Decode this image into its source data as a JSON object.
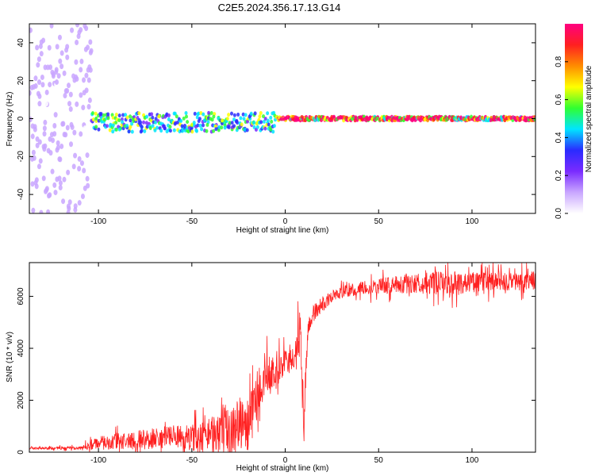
{
  "figure_title": "C2E5.2024.356.17.13.G14",
  "chart_data": [
    {
      "type": "heatmap",
      "xlabel": "Height of straight line (km)",
      "ylabel": "Frequency (Hz)",
      "xlim": [
        -137,
        134
      ],
      "ylim": [
        -50,
        50
      ],
      "xticks": [
        -100,
        -50,
        0,
        50,
        100
      ],
      "yticks": [
        -40,
        -20,
        0,
        20,
        40
      ],
      "colorbar": {
        "label": "Normalized spectral amplitude",
        "range": [
          0,
          1
        ],
        "ticks": [
          0.0,
          0.2,
          0.4,
          0.6,
          0.8
        ],
        "colormap": [
          "#ffffff",
          "#c9a6ff",
          "#7a2bff",
          "#2a2bff",
          "#00e5ff",
          "#30ff30",
          "#ffff00",
          "#ff8c00",
          "#ff2020",
          "#ff0080"
        ]
      },
      "description_series": [
        {
          "x_from": -137,
          "x_to": -104,
          "freq_center": 0,
          "freq_spread": 50,
          "amplitude": 0.1
        },
        {
          "x_from": -104,
          "x_to": -5,
          "freq_center": -2,
          "freq_spread": 5,
          "amplitude": 0.45
        },
        {
          "x_from": -5,
          "x_to": 134,
          "freq_center": 0,
          "freq_spread": 1,
          "amplitude": 0.9
        }
      ]
    },
    {
      "type": "line",
      "xlabel": "Height of straight line (km)",
      "ylabel": "SNR (10 * v/v)",
      "xlim": [
        -137,
        134
      ],
      "ylim": [
        0,
        7300
      ],
      "xticks": [
        -100,
        -50,
        0,
        50,
        100
      ],
      "yticks": [
        0,
        2000,
        4000,
        6000
      ],
      "color": "#ff2020",
      "envelope": {
        "x": [
          -137,
          -110,
          -100,
          -90,
          -80,
          -70,
          -60,
          -50,
          -40,
          -35,
          -30,
          -25,
          -20,
          -15,
          -10,
          -5,
          0,
          5,
          8,
          10,
          12,
          15,
          20,
          25,
          30,
          40,
          50,
          60,
          70,
          80,
          90,
          100,
          110,
          120,
          134
        ],
        "base": [
          150,
          160,
          350,
          400,
          450,
          550,
          600,
          550,
          700,
          900,
          700,
          1200,
          1000,
          2200,
          3000,
          3000,
          3500,
          3700,
          4500,
          1000,
          4700,
          5300,
          5700,
          6000,
          6150,
          6300,
          6400,
          6450,
          6500,
          6500,
          6500,
          6550,
          6550,
          6550,
          6600
        ],
        "noise": [
          80,
          120,
          500,
          700,
          800,
          800,
          900,
          1000,
          1300,
          2200,
          2000,
          2000,
          2200,
          1900,
          1500,
          1200,
          1000,
          1200,
          2000,
          1800,
          900,
          700,
          600,
          500,
          500,
          500,
          600,
          700,
          800,
          900,
          900,
          800,
          800,
          700,
          700
        ]
      }
    }
  ]
}
